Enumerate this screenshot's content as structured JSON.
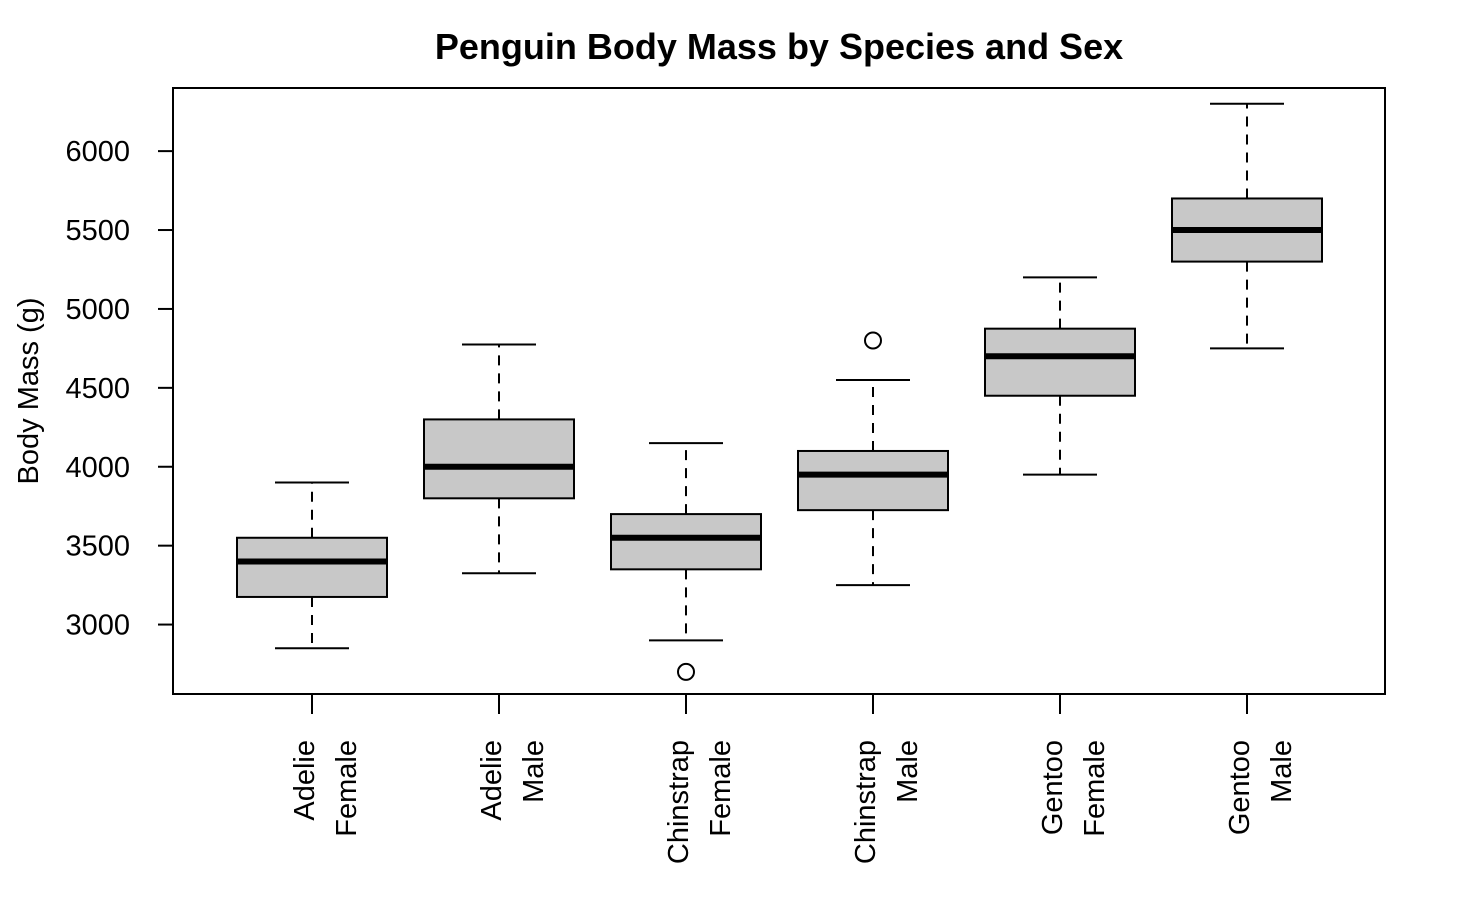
{
  "chart_data": {
    "type": "boxplot",
    "title": "Penguin Body Mass by Species and Sex",
    "xlabel": "",
    "ylabel": "Body Mass (g)",
    "ylim": [
      2560,
      6400
    ],
    "yticks": [
      3000,
      3500,
      4000,
      4500,
      5000,
      5500,
      6000
    ],
    "grid": false,
    "legend": "none",
    "box_fill": "#c8c8c8",
    "categories": [
      {
        "species": "Adelie",
        "sex": "Female",
        "min": 2850,
        "q1": 3175,
        "median": 3400,
        "q3": 3550,
        "max": 3900,
        "outliers": []
      },
      {
        "species": "Adelie",
        "sex": "Male",
        "min": 3325,
        "q1": 3800,
        "median": 4000,
        "q3": 4300,
        "max": 4775,
        "outliers": []
      },
      {
        "species": "Chinstrap",
        "sex": "Female",
        "min": 2900,
        "q1": 3350,
        "median": 3550,
        "q3": 3700,
        "max": 4150,
        "outliers": [
          2700
        ]
      },
      {
        "species": "Chinstrap",
        "sex": "Male",
        "min": 3250,
        "q1": 3725,
        "median": 3950,
        "q3": 4100,
        "max": 4550,
        "outliers": [
          4800
        ]
      },
      {
        "species": "Gentoo",
        "sex": "Female",
        "min": 3950,
        "q1": 4450,
        "median": 4700,
        "q3": 4875,
        "max": 5200,
        "outliers": []
      },
      {
        "species": "Gentoo",
        "sex": "Male",
        "min": 4750,
        "q1": 5300,
        "median": 5500,
        "q3": 5700,
        "max": 6300,
        "outliers": []
      }
    ]
  }
}
